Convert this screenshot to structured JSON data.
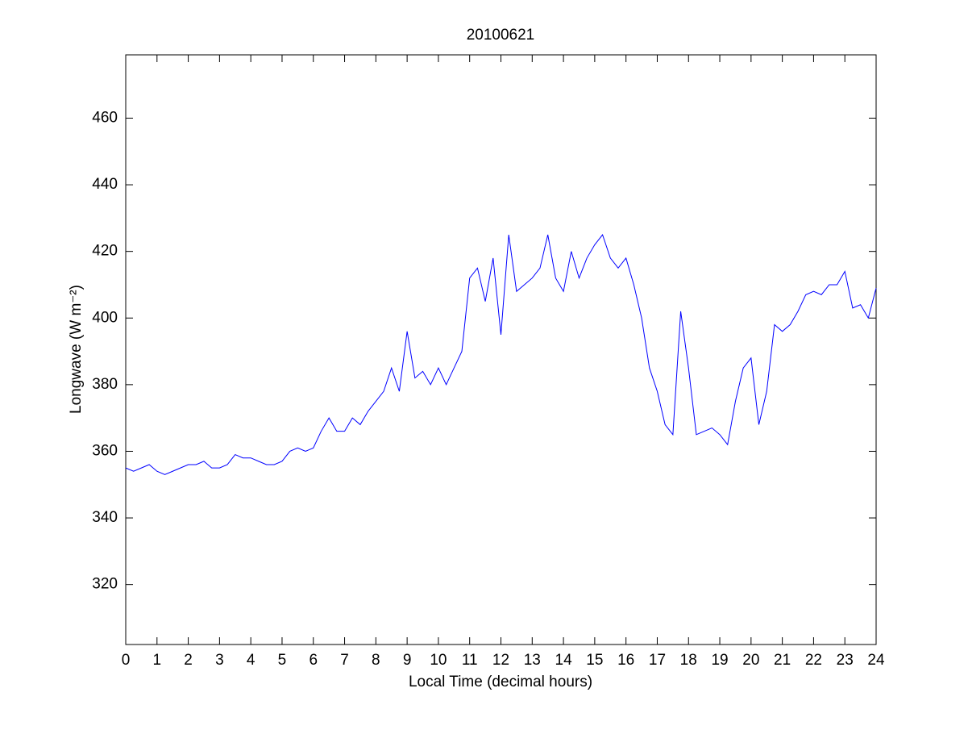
{
  "chart_data": {
    "type": "line",
    "title": "20100621",
    "xlabel": "Local Time (decimal hours)",
    "ylabel": "Longwave (W m⁻²)",
    "x": [
      0,
      0.25,
      0.5,
      0.75,
      1,
      1.25,
      1.5,
      1.75,
      2,
      2.25,
      2.5,
      2.75,
      3,
      3.25,
      3.5,
      3.75,
      4,
      4.25,
      4.5,
      4.75,
      5,
      5.25,
      5.5,
      5.75,
      6,
      6.25,
      6.5,
      6.75,
      7,
      7.25,
      7.5,
      7.75,
      8,
      8.25,
      8.5,
      8.75,
      9,
      9.25,
      9.5,
      9.75,
      10,
      10.25,
      10.5,
      10.75,
      11,
      11.25,
      11.5,
      11.75,
      12,
      12.25,
      12.5,
      12.75,
      13,
      13.25,
      13.5,
      13.75,
      14,
      14.25,
      14.5,
      14.75,
      15,
      15.25,
      15.5,
      15.75,
      16,
      16.25,
      16.5,
      16.75,
      17,
      17.25,
      17.5,
      17.75,
      18,
      18.25,
      18.5,
      18.75,
      19,
      19.25,
      19.5,
      19.75,
      20,
      20.25,
      20.5,
      20.75,
      21,
      21.25,
      21.5,
      21.75,
      22,
      22.25,
      22.5,
      22.75,
      23,
      23.25,
      23.5,
      23.75,
      24
    ],
    "series": [
      {
        "name": "Longwave",
        "color": "#0000ff",
        "values": [
          355,
          354,
          355,
          356,
          354,
          353,
          354,
          355,
          356,
          356,
          357,
          355,
          355,
          356,
          359,
          358,
          358,
          357,
          356,
          356,
          357,
          360,
          361,
          360,
          361,
          366,
          370,
          366,
          366,
          370,
          368,
          372,
          375,
          378,
          385,
          378,
          396,
          382,
          384,
          380,
          385,
          380,
          385,
          390,
          412,
          415,
          405,
          418,
          395,
          425,
          408,
          410,
          412,
          415,
          425,
          412,
          408,
          420,
          412,
          418,
          422,
          425,
          418,
          415,
          418,
          410,
          400,
          385,
          378,
          368,
          365,
          402,
          385,
          365,
          366,
          367,
          365,
          362,
          375,
          385,
          388,
          368,
          378,
          398,
          396,
          398,
          402,
          407,
          408,
          407,
          410,
          410,
          414,
          403,
          404,
          400,
          409
        ]
      }
    ],
    "xlim": [
      0,
      24
    ],
    "xticks": [
      0,
      1,
      2,
      3,
      4,
      5,
      6,
      7,
      8,
      9,
      10,
      11,
      12,
      13,
      14,
      15,
      16,
      17,
      18,
      19,
      20,
      21,
      22,
      23,
      24
    ],
    "ylim": [
      302,
      479
    ],
    "yticks": [
      320,
      340,
      360,
      380,
      400,
      420,
      440,
      460
    ],
    "grid": false
  }
}
